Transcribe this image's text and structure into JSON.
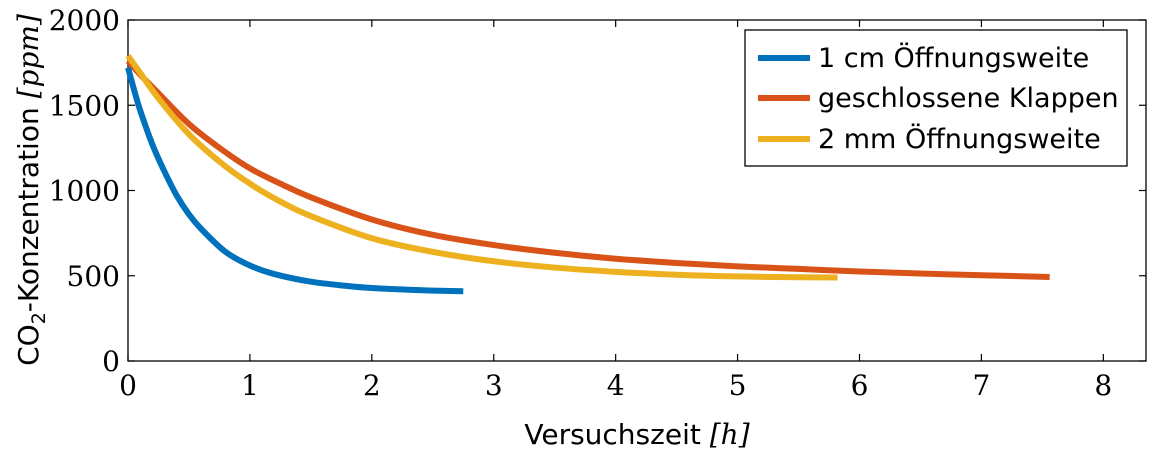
{
  "chart_data": {
    "type": "line",
    "xlabel": "Versuchszeit [h]",
    "xlabel_parts": {
      "text": "Versuchszeit ",
      "unit": "[h]"
    },
    "ylabel": "CO2-Konzentration [ppm]",
    "ylabel_parts": {
      "prefix": "CO",
      "sub": "2",
      "text": "-Konzentration ",
      "unit": "[ppm]"
    },
    "xlim": [
      0,
      8.35
    ],
    "ylim": [
      0,
      2000
    ],
    "xticks": [
      0,
      1,
      2,
      3,
      4,
      5,
      6,
      7,
      8
    ],
    "xtick_labels": [
      "0",
      "1",
      "2",
      "3",
      "4",
      "5",
      "6",
      "7",
      "8"
    ],
    "yticks": [
      0,
      500,
      1000,
      1500,
      2000
    ],
    "ytick_labels": [
      "0",
      "500",
      "1000",
      "1500",
      "2000"
    ],
    "grid": false,
    "legend_position": "top-right",
    "series": [
      {
        "name": "1 cm Öffnungsweite",
        "color": "#0072BD",
        "x": [
          0,
          0.05,
          0.1,
          0.2,
          0.3,
          0.4,
          0.5,
          0.6,
          0.8,
          1.0,
          1.2,
          1.5,
          1.8,
          2.0,
          2.3,
          2.5,
          2.75
        ],
        "y": [
          1720,
          1590,
          1470,
          1270,
          1110,
          970,
          860,
          775,
          640,
          560,
          510,
          465,
          440,
          428,
          418,
          413,
          409
        ]
      },
      {
        "name": "geschlossene Klappen",
        "color": "#D95319",
        "x": [
          0,
          0.1,
          0.25,
          0.5,
          0.75,
          1.0,
          1.25,
          1.5,
          2.0,
          2.5,
          3.0,
          3.5,
          4.0,
          4.5,
          5.0,
          5.5,
          6.0,
          6.5,
          7.0,
          7.56
        ],
        "y": [
          1760,
          1680,
          1570,
          1390,
          1250,
          1130,
          1040,
          960,
          830,
          740,
          680,
          635,
          600,
          575,
          555,
          540,
          525,
          513,
          503,
          493
        ]
      },
      {
        "name": "2 mm Öffnungsweite",
        "color": "#EDB120",
        "x": [
          0,
          0.1,
          0.25,
          0.5,
          0.75,
          1.0,
          1.25,
          1.5,
          2.0,
          2.5,
          3.0,
          3.5,
          4.0,
          4.5,
          5.0,
          5.5,
          5.82
        ],
        "y": [
          1790,
          1690,
          1540,
          1330,
          1170,
          1040,
          935,
          850,
          720,
          640,
          585,
          548,
          523,
          506,
          496,
          491,
          490
        ]
      }
    ]
  }
}
